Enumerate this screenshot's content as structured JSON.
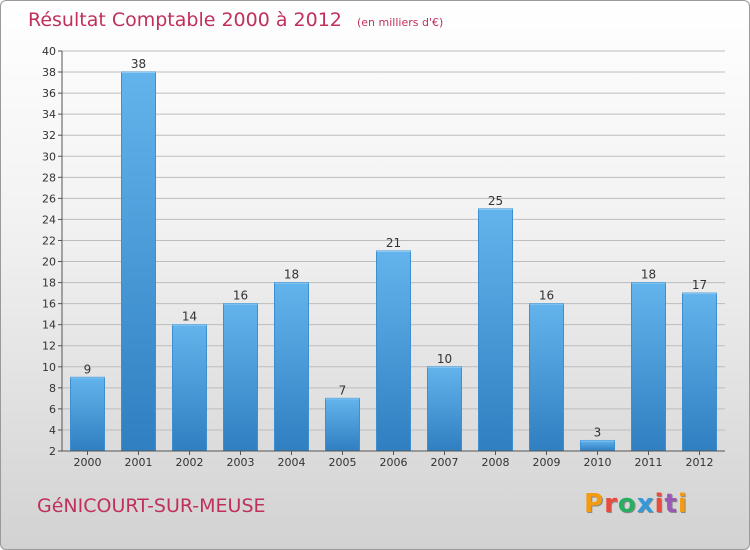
{
  "header": {
    "title": "Résultat Comptable 2000 à 2012",
    "unit": "(en milliers d'€)"
  },
  "footer": {
    "town": "GéNICOURT-SUR-MEUSE",
    "brand": "Proxiti",
    "brand_colors": [
      "#f39c12",
      "#e74c3c",
      "#27ae60",
      "#3498db",
      "#e74c3c",
      "#9b59b6",
      "#f39c12"
    ]
  },
  "colors": {
    "bar_light": "#63b4ec",
    "bar_dark": "#2f7fc1",
    "grid": "#bdbdbd",
    "axis": "#555555"
  },
  "chart_data": {
    "type": "bar",
    "title": "Résultat Comptable 2000 à 2012",
    "subtitle": "(en milliers d'€)",
    "xlabel": "",
    "ylabel": "",
    "categories": [
      "2000",
      "2001",
      "2002",
      "2003",
      "2004",
      "2005",
      "2006",
      "2007",
      "2008",
      "2009",
      "2010",
      "2011",
      "2012"
    ],
    "values": [
      9,
      38,
      14,
      16,
      18,
      7,
      21,
      10,
      25,
      16,
      3,
      18,
      17
    ],
    "ylim": [
      2,
      40
    ],
    "yticks": [
      2,
      4,
      6,
      8,
      10,
      12,
      14,
      16,
      18,
      20,
      22,
      24,
      26,
      28,
      30,
      32,
      34,
      36,
      38,
      40
    ],
    "grid": true,
    "legend": "none"
  }
}
